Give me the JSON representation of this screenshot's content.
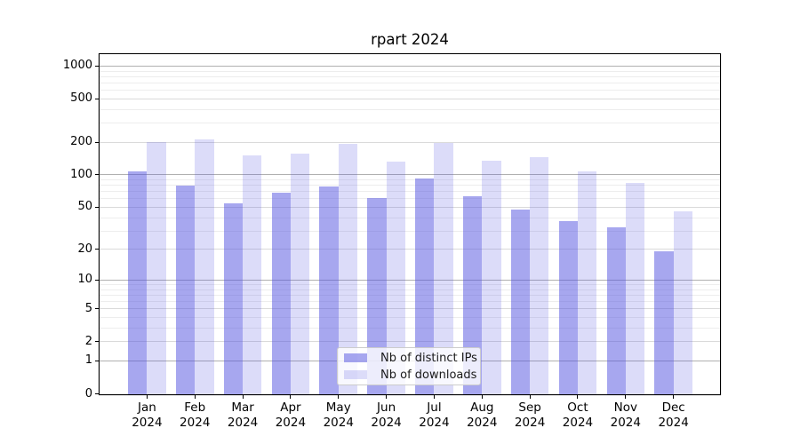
{
  "chart_data": {
    "type": "bar",
    "title": "rpart 2024",
    "categories": [
      "Jan 2024",
      "Feb 2024",
      "Mar 2024",
      "Apr 2024",
      "May 2024",
      "Jun 2024",
      "Jul 2024",
      "Aug 2024",
      "Sep 2024",
      "Oct 2024",
      "Nov 2024",
      "Dec 2024"
    ],
    "series": [
      {
        "name": "Nb of distinct IPs",
        "color": "rgba(80,80,224,0.5)",
        "values": [
          107,
          79,
          54,
          68,
          78,
          61,
          91,
          63,
          47,
          37,
          32,
          19
        ]
      },
      {
        "name": "Nb of downloads",
        "color": "rgba(80,80,224,0.2)",
        "values": [
          199,
          211,
          151,
          157,
          192,
          131,
          197,
          135,
          145,
          107,
          83,
          45
        ]
      }
    ],
    "xlabel": "",
    "ylabel": "",
    "y_axis": {
      "scale": "log1p",
      "ticks": [
        0,
        1,
        2,
        5,
        10,
        20,
        50,
        100,
        200,
        500,
        1000
      ],
      "major_gridlines": [
        1,
        10,
        100,
        1000
      ],
      "minor_gridlines": [
        3,
        4,
        6,
        7,
        8,
        9,
        30,
        40,
        60,
        70,
        80,
        90,
        300,
        400,
        600,
        700,
        800,
        900
      ],
      "range_top": 1280
    },
    "legend_position": "bottom-center",
    "grid": true,
    "colors": {
      "spine": "#000000",
      "major_grid": "#b0b0b0",
      "labeled_grid": "#dadada",
      "minor_grid": "#ededed"
    }
  }
}
